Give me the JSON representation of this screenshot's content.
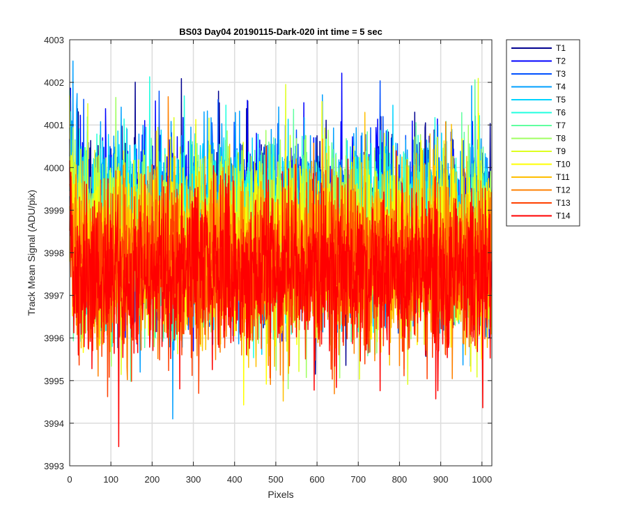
{
  "chart_data": {
    "type": "line",
    "title": "BS03 Day04 20190115-Dark-020 int time = 5 sec",
    "xlabel": "Pixels",
    "ylabel": "Track Mean Signal (ADU/pix)",
    "xlim": [
      0,
      1024
    ],
    "ylim": [
      3993,
      4003
    ],
    "xticks": [
      0,
      100,
      200,
      300,
      400,
      500,
      600,
      700,
      800,
      900,
      1000
    ],
    "yticks": [
      3993,
      3994,
      3995,
      3996,
      3997,
      3998,
      3999,
      4000,
      4001,
      4002,
      4003
    ],
    "grid": true,
    "legend_position": "outside-top-right",
    "series": [
      {
        "name": "T1",
        "color": "#00008f",
        "mean": 3998.6,
        "sd": 1.05
      },
      {
        "name": "T2",
        "color": "#0000ff",
        "mean": 3998.6,
        "sd": 1.05
      },
      {
        "name": "T3",
        "color": "#0050ff",
        "mean": 3998.5,
        "sd": 1.05
      },
      {
        "name": "T4",
        "color": "#009fff",
        "mean": 3998.6,
        "sd": 1.05
      },
      {
        "name": "T5",
        "color": "#00d4ff",
        "mean": 3998.5,
        "sd": 1.0
      },
      {
        "name": "T6",
        "color": "#20ffdf",
        "mean": 3998.4,
        "sd": 1.0
      },
      {
        "name": "T7",
        "color": "#60ffa0",
        "mean": 3998.4,
        "sd": 1.0
      },
      {
        "name": "T8",
        "color": "#9fff60",
        "mean": 3998.3,
        "sd": 1.0
      },
      {
        "name": "T9",
        "color": "#dfff20",
        "mean": 3998.2,
        "sd": 1.0
      },
      {
        "name": "T10",
        "color": "#ffff00",
        "mean": 3998.1,
        "sd": 1.0
      },
      {
        "name": "T11",
        "color": "#ffbf00",
        "mean": 3997.9,
        "sd": 1.0
      },
      {
        "name": "T12",
        "color": "#ff8000",
        "mean": 3997.8,
        "sd": 1.0
      },
      {
        "name": "T13",
        "color": "#ff4000",
        "mean": 3997.6,
        "sd": 0.95
      },
      {
        "name": "T14",
        "color": "#ff0000",
        "mean": 3997.5,
        "sd": 0.95
      }
    ],
    "notable_points": [
      {
        "series": "T4",
        "x": 8,
        "y": 4002.5
      },
      {
        "series": "T14",
        "x": 119,
        "y": 3993.45
      },
      {
        "series": "T4",
        "x": 250,
        "y": 3994.1
      },
      {
        "series": "T9",
        "x": 524,
        "y": 4001.95
      }
    ]
  }
}
